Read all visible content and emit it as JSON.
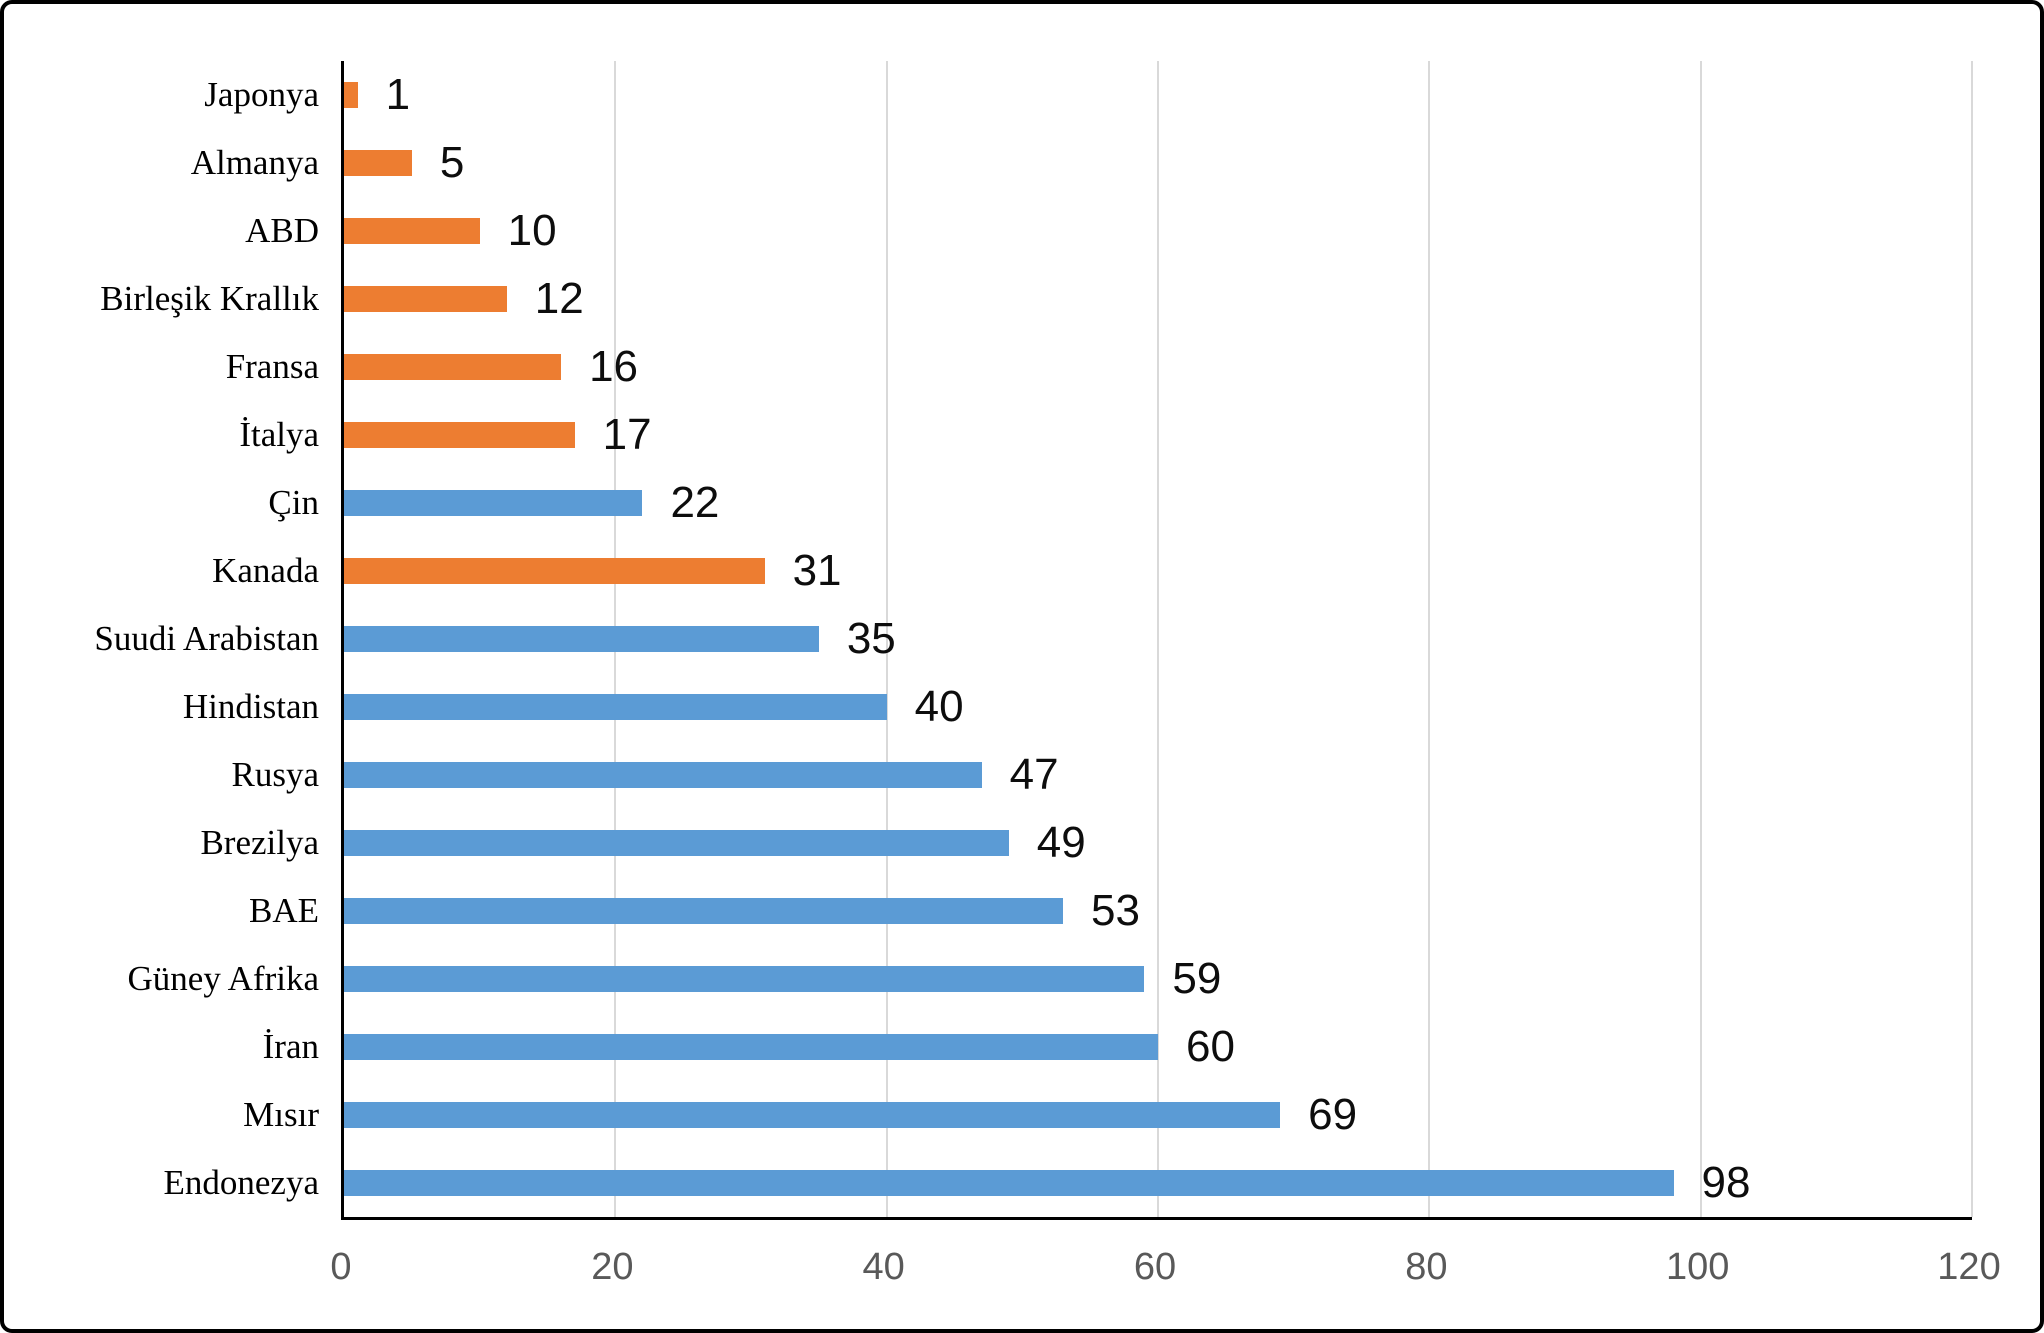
{
  "chart_data": {
    "type": "bar",
    "orientation": "horizontal",
    "title": "",
    "xlabel": "",
    "ylabel": "",
    "categories": [
      "Japonya",
      "Almanya",
      "ABD",
      "Birleşik Krallık",
      "Fransa",
      "İtalya",
      "Çin",
      "Kanada",
      "Suudi Arabistan",
      "Hindistan",
      "Rusya",
      "Brezilya",
      "BAE",
      "Güney Afrika",
      "İran",
      "Mısır",
      "Endonezya"
    ],
    "values": [
      1,
      5,
      10,
      12,
      16,
      17,
      22,
      31,
      35,
      40,
      47,
      49,
      53,
      59,
      60,
      69,
      98
    ],
    "bar_colors": [
      "orange",
      "orange",
      "orange",
      "orange",
      "orange",
      "orange",
      "blue",
      "orange",
      "blue",
      "blue",
      "blue",
      "blue",
      "blue",
      "blue",
      "blue",
      "blue",
      "blue"
    ],
    "x_ticks": [
      "0",
      "20",
      "40",
      "60",
      "80",
      "100",
      "120"
    ],
    "xlim": [
      0,
      120
    ],
    "grid": true,
    "legend": false,
    "data_labels": true
  },
  "colors": {
    "orange": "#ED7D31",
    "blue": "#5B9BD5",
    "gridline": "#D9D9D9",
    "axis_line": "#000000",
    "tick_label": "#595959",
    "value_label": "#0d0d0d",
    "category_label": "#000000",
    "frame_border": "#000000",
    "background": "#FFFFFF"
  }
}
